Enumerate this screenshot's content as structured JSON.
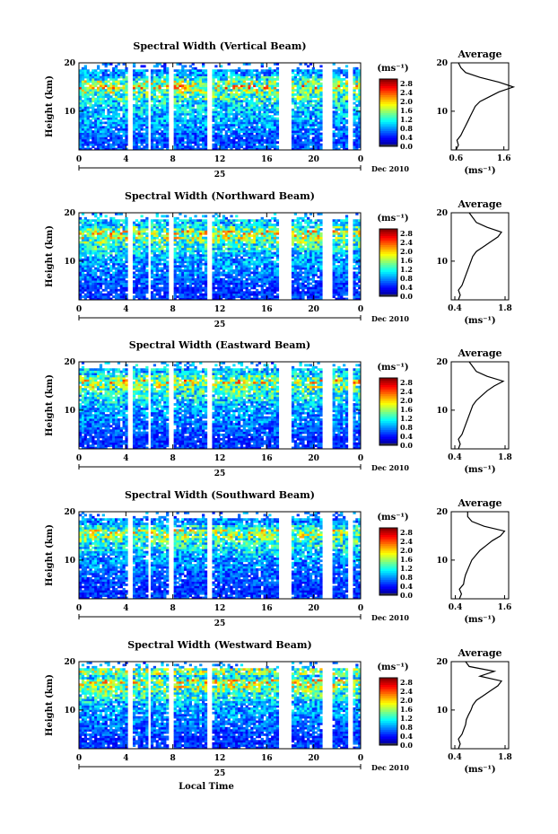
{
  "figure": {
    "xlabel": "Local Time",
    "day_label": "25",
    "month_label": "Dec 2010",
    "ylabel": "Height (km)",
    "units_label": "(ms⁻¹)",
    "avg_title": "Average",
    "avg_xlabel": "(ms⁻¹)"
  },
  "chart_data": [
    {
      "type": "heatmap",
      "title": "Spectral Width (Vertical Beam)",
      "x_ticks": [
        "0",
        "4",
        "8",
        "12",
        "16",
        "20",
        "0"
      ],
      "xlim": [
        0,
        24
      ],
      "y_ticks": [
        "20",
        "10"
      ],
      "ylim": [
        2,
        20
      ],
      "colorbar_ticks": [
        "2.8",
        "2.4",
        "2.0",
        "1.6",
        "1.2",
        "0.8",
        "0.4",
        "0.0"
      ],
      "colorbar_range": [
        0,
        3.0
      ],
      "data_gaps_hours": [
        [
          4.2,
          4.6
        ],
        [
          5.9,
          6.2
        ],
        [
          7.6,
          8.0
        ],
        [
          11.0,
          11.3
        ],
        [
          17.0,
          18.0
        ],
        [
          20.7,
          21.5
        ],
        [
          22.9,
          23.3
        ]
      ],
      "average_profile": {
        "type": "line",
        "title": "Average",
        "x_ticks": [
          "0.6",
          "1.6"
        ],
        "xlim": [
          0.5,
          1.7
        ],
        "y_ticks": [
          "20",
          "10"
        ],
        "ylim": [
          2,
          20
        ],
        "height_km": [
          2,
          3,
          4,
          5,
          6,
          7,
          8,
          9,
          10,
          11,
          12,
          13,
          14,
          15,
          16,
          17,
          18,
          19,
          20
        ],
        "width": [
          0.6,
          0.65,
          0.62,
          0.7,
          0.75,
          0.8,
          0.85,
          0.9,
          0.95,
          1.0,
          1.1,
          1.3,
          1.5,
          1.8,
          1.5,
          1.1,
          0.8,
          0.7,
          0.65
        ]
      }
    },
    {
      "type": "heatmap",
      "title": "Spectral Width (Northward Beam)",
      "x_ticks": [
        "0",
        "4",
        "8",
        "12",
        "16",
        "20",
        "0"
      ],
      "xlim": [
        0,
        24
      ],
      "y_ticks": [
        "20",
        "10"
      ],
      "ylim": [
        2,
        20
      ],
      "colorbar_ticks": [
        "2.8",
        "2.4",
        "2.0",
        "1.6",
        "1.2",
        "0.8",
        "0.4",
        "0.0"
      ],
      "colorbar_range": [
        0,
        3.0
      ],
      "data_gaps_hours": [
        [
          4.2,
          4.6
        ],
        [
          5.9,
          6.2
        ],
        [
          7.6,
          8.0
        ],
        [
          11.0,
          11.3
        ],
        [
          17.0,
          18.0
        ],
        [
          20.7,
          21.5
        ],
        [
          22.9,
          23.3
        ]
      ],
      "average_profile": {
        "type": "line",
        "title": "Average",
        "x_ticks": [
          "0.4",
          "1.8"
        ],
        "xlim": [
          0.3,
          1.9
        ],
        "y_ticks": [
          "20",
          "10"
        ],
        "ylim": [
          2,
          20
        ],
        "height_km": [
          2,
          3,
          4,
          5,
          6,
          7,
          8,
          9,
          10,
          11,
          12,
          13,
          14,
          15,
          16,
          17,
          18,
          19,
          20
        ],
        "width": [
          0.5,
          0.55,
          0.5,
          0.6,
          0.65,
          0.7,
          0.75,
          0.8,
          0.85,
          0.9,
          1.0,
          1.2,
          1.4,
          1.6,
          1.7,
          1.3,
          1.0,
          0.9,
          0.8
        ]
      }
    },
    {
      "type": "heatmap",
      "title": "Spectral Width (Eastward Beam)",
      "x_ticks": [
        "0",
        "4",
        "8",
        "12",
        "16",
        "20",
        "0"
      ],
      "xlim": [
        0,
        24
      ],
      "y_ticks": [
        "20",
        "10"
      ],
      "ylim": [
        2,
        20
      ],
      "colorbar_ticks": [
        "2.8",
        "2.4",
        "2.0",
        "1.6",
        "1.2",
        "0.8",
        "0.4",
        "0.0"
      ],
      "colorbar_range": [
        0,
        3.0
      ],
      "data_gaps_hours": [
        [
          4.2,
          4.6
        ],
        [
          5.9,
          6.2
        ],
        [
          7.6,
          8.0
        ],
        [
          11.0,
          11.3
        ],
        [
          17.0,
          18.0
        ],
        [
          20.7,
          21.5
        ],
        [
          22.9,
          23.3
        ]
      ],
      "average_profile": {
        "type": "line",
        "title": "Average",
        "x_ticks": [
          "0.4",
          "1.8"
        ],
        "xlim": [
          0.3,
          1.9
        ],
        "y_ticks": [
          "20",
          "10"
        ],
        "ylim": [
          2,
          20
        ],
        "height_km": [
          2,
          3,
          4,
          5,
          6,
          7,
          8,
          9,
          10,
          11,
          12,
          13,
          14,
          15,
          16,
          17,
          18,
          19,
          20
        ],
        "width": [
          0.5,
          0.55,
          0.5,
          0.6,
          0.65,
          0.7,
          0.75,
          0.8,
          0.85,
          0.9,
          1.0,
          1.15,
          1.3,
          1.5,
          1.75,
          1.3,
          1.0,
          0.9,
          0.8
        ]
      }
    },
    {
      "type": "heatmap",
      "title": "Spectral Width (Southward Beam)",
      "x_ticks": [
        "0",
        "4",
        "8",
        "12",
        "16",
        "20",
        "0"
      ],
      "xlim": [
        0,
        24
      ],
      "y_ticks": [
        "20",
        "10"
      ],
      "ylim": [
        2,
        20
      ],
      "colorbar_ticks": [
        "2.8",
        "2.4",
        "2.0",
        "1.6",
        "1.2",
        "0.8",
        "0.4",
        "0.0"
      ],
      "colorbar_range": [
        0,
        3.0
      ],
      "data_gaps_hours": [
        [
          4.2,
          4.6
        ],
        [
          5.9,
          6.2
        ],
        [
          7.6,
          8.0
        ],
        [
          11.0,
          11.3
        ],
        [
          17.0,
          18.0
        ],
        [
          20.7,
          21.5
        ],
        [
          22.9,
          23.3
        ]
      ],
      "average_profile": {
        "type": "line",
        "title": "Average",
        "x_ticks": [
          "0.4",
          "1.6"
        ],
        "xlim": [
          0.3,
          1.7
        ],
        "y_ticks": [
          "20",
          "10"
        ],
        "ylim": [
          2,
          20
        ],
        "height_km": [
          2,
          3,
          4,
          5,
          6,
          7,
          8,
          9,
          10,
          11,
          12,
          13,
          14,
          15,
          16,
          17,
          18,
          19,
          20
        ],
        "width": [
          0.5,
          0.55,
          0.5,
          0.6,
          0.62,
          0.65,
          0.7,
          0.75,
          0.8,
          0.9,
          1.0,
          1.15,
          1.3,
          1.5,
          1.6,
          1.1,
          0.8,
          0.7,
          0.7
        ]
      }
    },
    {
      "type": "heatmap",
      "title": "Spectral Width (Westward Beam)",
      "x_ticks": [
        "0",
        "4",
        "8",
        "12",
        "16",
        "20",
        "0"
      ],
      "xlim": [
        0,
        24
      ],
      "y_ticks": [
        "20",
        "10"
      ],
      "ylim": [
        2,
        20
      ],
      "colorbar_ticks": [
        "2.8",
        "2.4",
        "2.0",
        "1.6",
        "1.2",
        "0.8",
        "0.4",
        "0.0"
      ],
      "colorbar_range": [
        0,
        3.0
      ],
      "data_gaps_hours": [
        [
          4.2,
          4.6
        ],
        [
          5.9,
          6.2
        ],
        [
          7.6,
          8.0
        ],
        [
          11.0,
          11.3
        ],
        [
          17.0,
          18.0
        ],
        [
          20.7,
          21.5
        ],
        [
          22.9,
          23.3
        ]
      ],
      "average_profile": {
        "type": "line",
        "title": "Average",
        "x_ticks": [
          "0.4",
          "1.8"
        ],
        "xlim": [
          0.3,
          1.9
        ],
        "y_ticks": [
          "20",
          "10"
        ],
        "ylim": [
          2,
          20
        ],
        "height_km": [
          2,
          3,
          4,
          5,
          6,
          7,
          8,
          9,
          10,
          11,
          12,
          13,
          14,
          15,
          16,
          17,
          18,
          19,
          20
        ],
        "width": [
          0.5,
          0.55,
          0.5,
          0.6,
          0.65,
          0.7,
          0.72,
          0.78,
          0.85,
          0.9,
          1.0,
          1.2,
          1.4,
          1.6,
          1.7,
          1.1,
          1.5,
          0.8,
          0.7
        ]
      }
    }
  ]
}
